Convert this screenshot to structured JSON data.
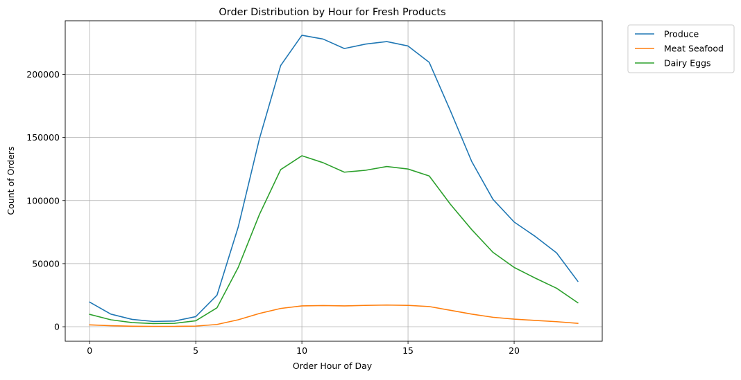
{
  "chart_data": {
    "type": "line",
    "title": "Order Distribution by Hour for Fresh Products",
    "xlabel": "Order Hour of Day",
    "ylabel": "Count of Orders",
    "xlim": [
      -1.15,
      24.15
    ],
    "ylim": [
      -11500,
      242500
    ],
    "xticks": [
      0,
      5,
      10,
      15,
      20
    ],
    "yticks": [
      0,
      50000,
      100000,
      150000,
      200000
    ],
    "grid": true,
    "legend_position": "outside-top-right",
    "x": [
      0,
      1,
      2,
      3,
      4,
      5,
      6,
      7,
      8,
      9,
      10,
      11,
      12,
      13,
      14,
      15,
      16,
      17,
      18,
      19,
      20,
      21,
      22,
      23
    ],
    "series": [
      {
        "name": "Produce",
        "color": "#1f77b4",
        "values": [
          19500,
          10000,
          5800,
          4200,
          4500,
          8000,
          25000,
          79000,
          149000,
          207000,
          231000,
          228000,
          220500,
          224000,
          226000,
          222500,
          209500,
          171000,
          131000,
          101000,
          83000,
          71500,
          58500,
          36000
        ]
      },
      {
        "name": "Meat Seafood",
        "color": "#ff7f0e",
        "values": [
          1500,
          800,
          400,
          300,
          300,
          500,
          1800,
          5500,
          10500,
          14500,
          16500,
          16800,
          16500,
          16900,
          17200,
          16900,
          16000,
          13000,
          10000,
          7500,
          6000,
          5000,
          4000,
          2700
        ]
      },
      {
        "name": "Dairy Eggs",
        "color": "#2ca02c",
        "values": [
          9800,
          5500,
          3300,
          2500,
          2700,
          4700,
          15000,
          47000,
          89000,
          124500,
          135500,
          130000,
          122500,
          124000,
          127000,
          125000,
          119500,
          97000,
          77000,
          59000,
          47000,
          38500,
          30500,
          19000
        ]
      }
    ]
  }
}
